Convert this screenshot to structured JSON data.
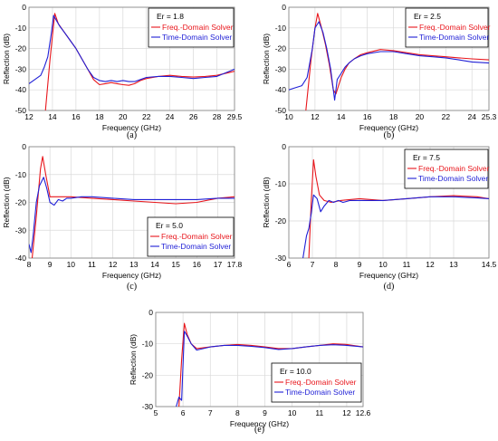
{
  "colors": {
    "freq_series": "#e8151b",
    "time_series": "#1f1fd6",
    "grid": "#d9d9d9",
    "axis": "#7f7f7f"
  },
  "chart_data": [
    {
      "type": "line",
      "panel_label": "(a)",
      "xlabel": "Frequency (GHz)",
      "ylabel": "Reflection (dB)",
      "xlim": [
        12,
        29.5
      ],
      "ylim": [
        -50,
        0
      ],
      "xticks": [
        "12",
        "14",
        "16",
        "18",
        "20",
        "22",
        "24",
        "26",
        "28",
        "29.5"
      ],
      "yticks": [
        "0",
        "-10",
        "-20",
        "-30",
        "-40",
        "-50"
      ],
      "grid": true,
      "legend_position": "top-right",
      "legend_title": "Er = 1.8",
      "series": [
        {
          "name": "Freq.-Domain Solver",
          "x": [
            13.4,
            13.8,
            14.2,
            14.5,
            15.0,
            15.5,
            16.0,
            16.5,
            17.0,
            17.5,
            18.0,
            18.5,
            19.0,
            19.5,
            20.0,
            20.5,
            21.0,
            21.5,
            22.0,
            23.0,
            24.0,
            25.0,
            26.0,
            27.0,
            28.0,
            29.5
          ],
          "y": [
            -50,
            -25,
            -3,
            -8,
            -12,
            -16,
            -20,
            -25,
            -30,
            -35,
            -37.5,
            -37,
            -36.5,
            -37,
            -37.5,
            -37.8,
            -37,
            -35.5,
            -34.5,
            -33.5,
            -33,
            -33.5,
            -33.8,
            -33.5,
            -33,
            -31
          ]
        },
        {
          "name": "Time-Domain Solver",
          "x": [
            12.0,
            12.5,
            13.0,
            13.3,
            13.6,
            13.9,
            14.1,
            14.3,
            14.6,
            15.0,
            15.5,
            16.0,
            16.5,
            17.0,
            17.5,
            18.0,
            18.5,
            19.0,
            19.5,
            20.0,
            20.5,
            21.0,
            21.5,
            22.0,
            23.0,
            24.0,
            25.0,
            26.0,
            27.0,
            28.0,
            29.5
          ],
          "y": [
            -37,
            -35,
            -33,
            -29,
            -24,
            -13,
            -4,
            -6,
            -9,
            -12,
            -16,
            -20,
            -25,
            -30,
            -34,
            -35.5,
            -36,
            -35.5,
            -36,
            -35.5,
            -36,
            -36,
            -35,
            -34,
            -33.5,
            -33.5,
            -34,
            -34.5,
            -34,
            -33.5,
            -30
          ]
        }
      ]
    },
    {
      "type": "line",
      "panel_label": "(b)",
      "xlabel": "Frequency (GHz)",
      "ylabel": "Reflection (dB)",
      "xlim": [
        10,
        25.3
      ],
      "ylim": [
        -50,
        0
      ],
      "xticks": [
        "10",
        "12",
        "14",
        "16",
        "18",
        "20",
        "22",
        "24",
        "25.3"
      ],
      "yticks": [
        "0",
        "-10",
        "-20",
        "-30",
        "-40",
        "-50"
      ],
      "grid": true,
      "legend_position": "top-right",
      "legend_title": "Er = 2.5",
      "series": [
        {
          "name": "Freq.-Domain Solver",
          "x": [
            11.3,
            11.7,
            12.0,
            12.2,
            12.5,
            12.8,
            13.1,
            13.4,
            13.6,
            13.8,
            14.0,
            14.3,
            14.6,
            15.0,
            15.5,
            16.0,
            17.0,
            18.0,
            19.0,
            20.0,
            21.0,
            22.0,
            23.0,
            24.0,
            25.3
          ],
          "y": [
            -50,
            -25,
            -10,
            -3,
            -10,
            -18,
            -28,
            -40,
            -42,
            -38,
            -34,
            -30,
            -27,
            -25,
            -23,
            -22,
            -20.5,
            -21,
            -22,
            -23,
            -23.5,
            -24,
            -24.5,
            -25,
            -25.5
          ]
        },
        {
          "name": "Time-Domain Solver",
          "x": [
            10.0,
            10.5,
            11.0,
            11.4,
            11.8,
            12.0,
            12.3,
            12.6,
            12.9,
            13.2,
            13.5,
            13.7,
            14.0,
            14.3,
            14.6,
            15.0,
            15.5,
            16.0,
            17.0,
            18.0,
            19.0,
            20.0,
            21.0,
            22.0,
            23.0,
            24.0,
            25.3
          ],
          "y": [
            -40,
            -39,
            -38,
            -34,
            -20,
            -10,
            -7,
            -12,
            -20,
            -30,
            -45,
            -35,
            -32,
            -29,
            -27,
            -25,
            -23.5,
            -22.5,
            -21.5,
            -21.5,
            -22.5,
            -23.5,
            -24,
            -24.5,
            -25.5,
            -26.5,
            -27
          ]
        }
      ]
    },
    {
      "type": "line",
      "panel_label": "(c)",
      "xlabel": "Frequency (GHz)",
      "ylabel": "Reflection (dB)",
      "xlim": [
        8,
        17.8
      ],
      "ylim": [
        -40,
        0
      ],
      "xticks": [
        "8",
        "9",
        "10",
        "11",
        "12",
        "13",
        "14",
        "15",
        "16",
        "17",
        "17.8"
      ],
      "yticks": [
        "0",
        "-10",
        "-20",
        "-30",
        "-40"
      ],
      "grid": true,
      "legend_position": "bottom-right",
      "legend_title": "Er = 5.0",
      "series": [
        {
          "name": "Freq.-Domain Solver",
          "x": [
            8.15,
            8.35,
            8.55,
            8.65,
            8.8,
            9.0,
            9.3,
            9.6,
            10.0,
            11.0,
            12.0,
            13.0,
            14.0,
            15.0,
            16.0,
            17.0,
            17.8
          ],
          "y": [
            -40,
            -25,
            -8,
            -3.5,
            -10,
            -18,
            -18,
            -18,
            -18,
            -18.5,
            -19,
            -19.5,
            -20,
            -20.5,
            -20,
            -18.5,
            -18
          ]
        },
        {
          "name": "Time-Domain Solver",
          "x": [
            8.0,
            8.1,
            8.2,
            8.35,
            8.5,
            8.7,
            8.85,
            9.0,
            9.2,
            9.4,
            9.6,
            9.8,
            10.0,
            10.5,
            11.0,
            12.0,
            13.0,
            14.0,
            15.0,
            16.0,
            17.0,
            17.8
          ],
          "y": [
            -35,
            -38,
            -32,
            -20,
            -14,
            -11,
            -15,
            -20,
            -21,
            -19,
            -19.5,
            -18.5,
            -18.5,
            -18,
            -18,
            -18.5,
            -19,
            -19,
            -19,
            -19,
            -18.5,
            -18.5
          ]
        }
      ]
    },
    {
      "type": "line",
      "panel_label": "(d)",
      "xlabel": "Frequency (GHz)",
      "ylabel": "Reflection (dB)",
      "xlim": [
        6,
        14.5
      ],
      "ylim": [
        -30,
        0
      ],
      "xticks": [
        "6",
        "7",
        "8",
        "9",
        "10",
        "11",
        "12",
        "13",
        "14.5"
      ],
      "yticks": [
        "0",
        "-10",
        "-20",
        "-30"
      ],
      "grid": true,
      "legend_position": "top-right",
      "legend_title": "Er = 7.5",
      "series": [
        {
          "name": "Freq.-Domain Solver",
          "x": [
            6.85,
            6.95,
            7.05,
            7.15,
            7.3,
            7.5,
            7.8,
            8.2,
            9.0,
            10.0,
            11.0,
            12.0,
            13.0,
            14.0,
            14.5
          ],
          "y": [
            -30,
            -15,
            -3.5,
            -8,
            -13,
            -14.5,
            -15,
            -14.5,
            -14,
            -14.5,
            -14,
            -13.5,
            -13.2,
            -13.5,
            -14
          ]
        },
        {
          "name": "Time-Domain Solver",
          "x": [
            6.6,
            6.75,
            6.85,
            6.95,
            7.05,
            7.2,
            7.35,
            7.5,
            7.7,
            7.9,
            8.1,
            8.3,
            8.6,
            9.0,
            9.5,
            10.0,
            11.0,
            12.0,
            13.0,
            14.0,
            14.5
          ],
          "y": [
            -30,
            -24,
            -22,
            -18,
            -13,
            -14,
            -17.5,
            -16,
            -14.5,
            -15,
            -14.5,
            -15,
            -14.5,
            -14.5,
            -14.5,
            -14.5,
            -14,
            -13.5,
            -13.5,
            -13.8,
            -14
          ]
        }
      ]
    },
    {
      "type": "line",
      "panel_label": "(e)",
      "xlabel": "Frequency (GHz)",
      "ylabel": "Reflection (dB)",
      "xlim": [
        5,
        12.6
      ],
      "ylim": [
        -30,
        0
      ],
      "xticks": [
        "5",
        "6",
        "7",
        "8",
        "9",
        "10",
        "11",
        "12",
        "12.6"
      ],
      "yticks": [
        "0",
        "-10",
        "-20",
        "-30"
      ],
      "grid": true,
      "legend_position": "bottom-right",
      "legend_title": "Er = 10.0",
      "series": [
        {
          "name": "Freq.-Domain Solver",
          "x": [
            5.85,
            5.95,
            6.05,
            6.15,
            6.3,
            6.5,
            7.0,
            7.5,
            8.0,
            8.5,
            9.0,
            9.5,
            10.0,
            10.5,
            11.0,
            11.5,
            12.0,
            12.6
          ],
          "y": [
            -30,
            -15,
            -3.5,
            -7,
            -10,
            -11.5,
            -11,
            -10.5,
            -10.2,
            -10.5,
            -11,
            -11.5,
            -11.5,
            -11,
            -10.5,
            -10,
            -10.2,
            -11
          ]
        },
        {
          "name": "Time-Domain Solver",
          "x": [
            5.75,
            5.85,
            5.95,
            6.05,
            6.15,
            6.3,
            6.5,
            7.0,
            7.5,
            8.0,
            8.5,
            9.0,
            9.5,
            10.0,
            10.5,
            11.0,
            11.5,
            12.0,
            12.6
          ],
          "y": [
            -30,
            -27,
            -28,
            -6,
            -7.5,
            -10,
            -12,
            -11,
            -10.5,
            -10.5,
            -10.8,
            -11.2,
            -11.8,
            -11.5,
            -11,
            -10.5,
            -10.3,
            -10.5,
            -11
          ]
        }
      ]
    }
  ]
}
